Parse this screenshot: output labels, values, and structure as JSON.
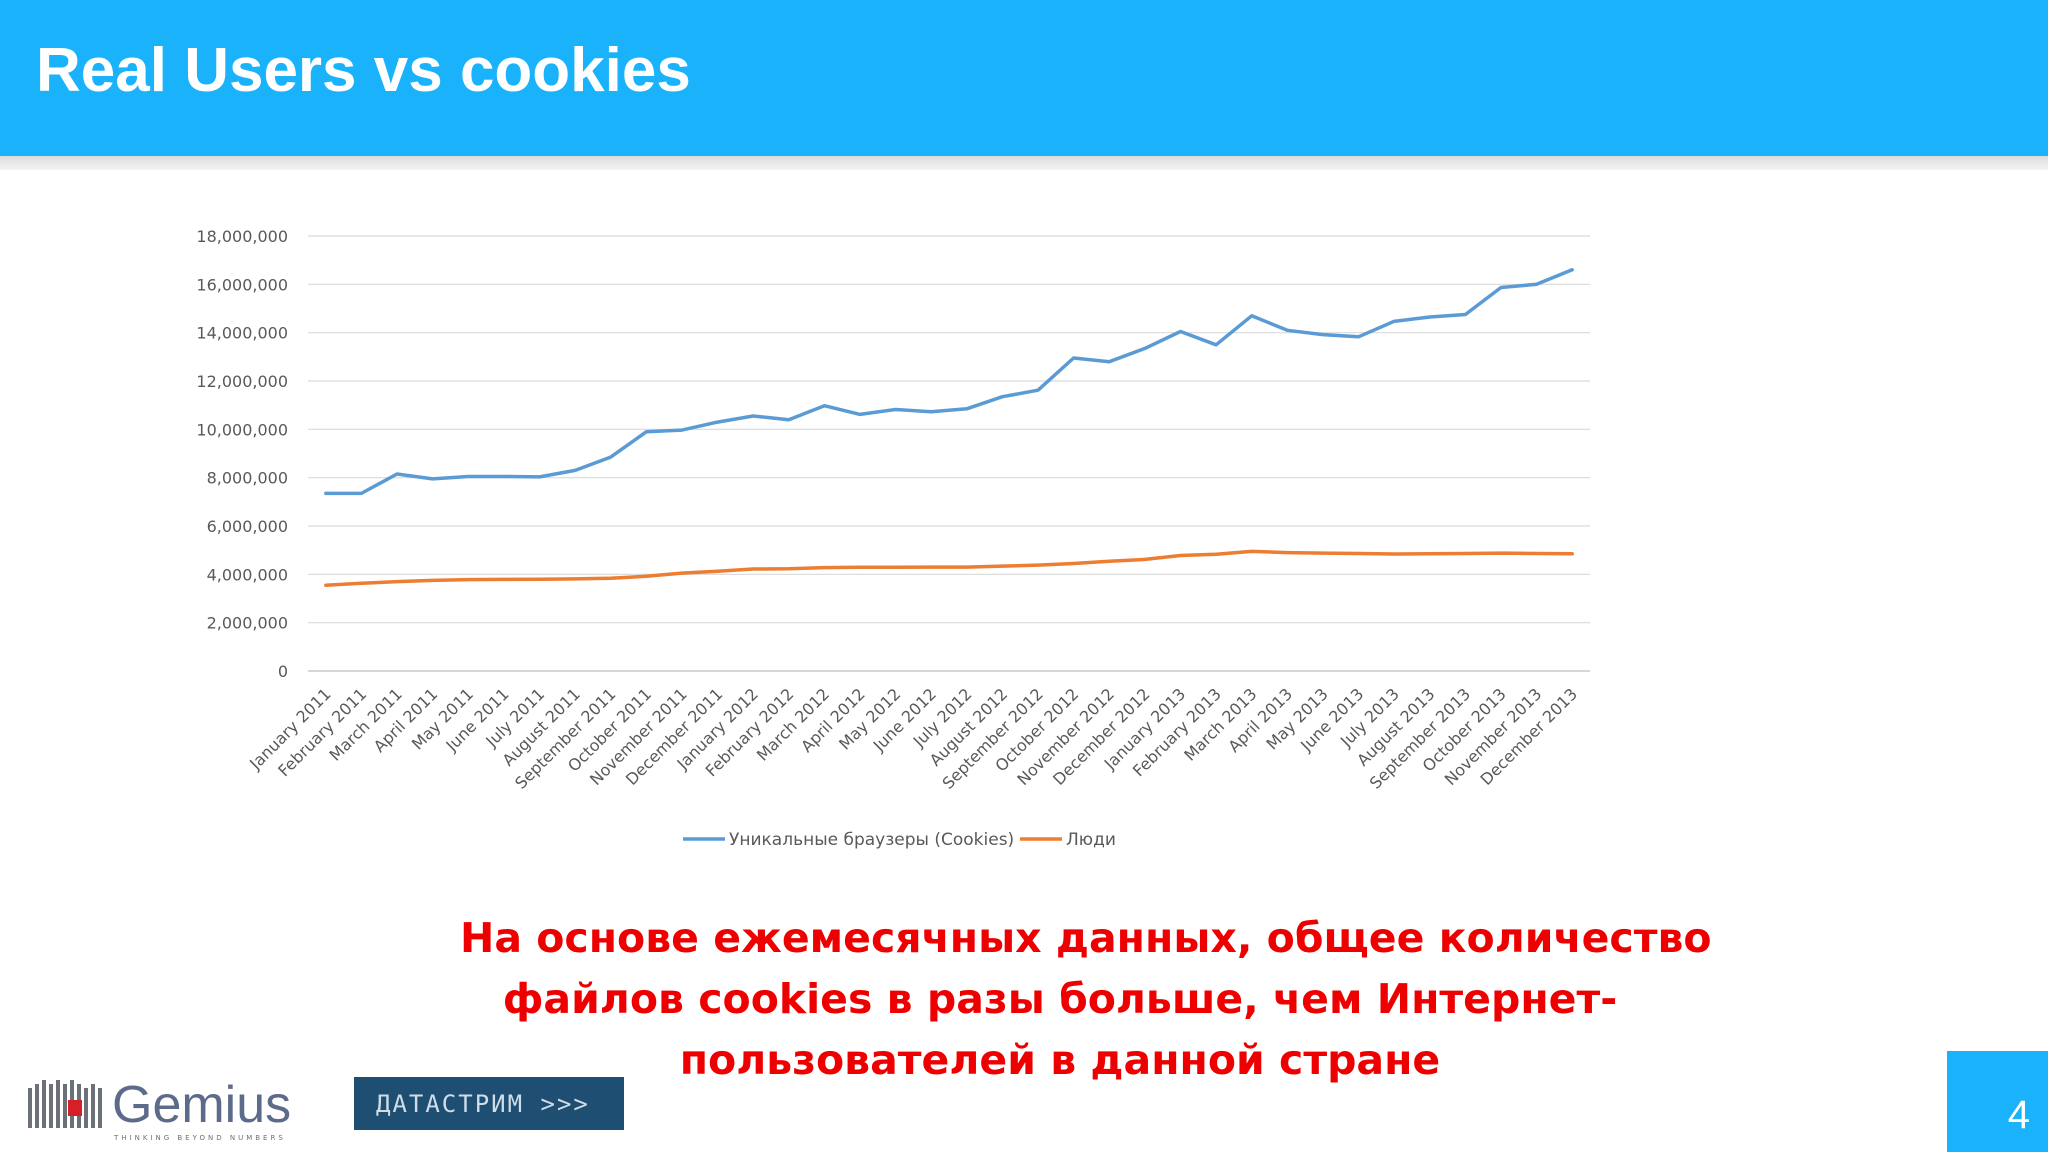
{
  "slide": {
    "title": "Real Users vs cookies",
    "caption_lines": [
      "На основе ежемесячных данных, общее количество",
      "файлов cookies в разы больше, чем Интернет-",
      "пользователей в данной стране"
    ],
    "page_number": "4",
    "logos": {
      "gemius": "Gemius",
      "gemius_tagline": "THINKING BEYOND NUMBERS",
      "datastream": "ДАТАСТРИМ >>>"
    },
    "colors": {
      "header": "#1ab2fa",
      "caption": "#ee0000"
    }
  },
  "chart_data": {
    "type": "line",
    "title": "",
    "xlabel": "",
    "ylabel": "",
    "ylim": [
      0,
      18000000
    ],
    "yticks": [
      0,
      2000000,
      4000000,
      6000000,
      8000000,
      10000000,
      12000000,
      14000000,
      16000000,
      18000000
    ],
    "ytick_labels": [
      "0",
      "2,000,000",
      "4,000,000",
      "6,000,000",
      "8,000,000",
      "10,000,000",
      "12,000,000",
      "14,000,000",
      "16,000,000",
      "18,000,000"
    ],
    "grid": true,
    "legend": "bottom",
    "categories": [
      "January 2011",
      "February 2011",
      "March 2011",
      "April 2011",
      "May 2011",
      "June 2011",
      "July 2011",
      "August 2011",
      "September 2011",
      "October 2011",
      "November 2011",
      "December 2011",
      "January 2012",
      "February 2012",
      "March 2012",
      "April 2012",
      "May 2012",
      "June 2012",
      "July 2012",
      "August 2012",
      "September 2012",
      "October 2012",
      "November 2012",
      "December 2012",
      "January 2013",
      "February 2013",
      "March 2013",
      "April 2013",
      "May 2013",
      "June 2013",
      "July 2013",
      "August 2013",
      "September 2013",
      "October 2013",
      "November 2013",
      "December 2013"
    ],
    "series": [
      {
        "name": "Уникальные браузеры (Cookies)",
        "color": "#5b9bd5",
        "values": [
          7350000,
          7350000,
          8150000,
          7950000,
          8050000,
          8050000,
          8030000,
          8300000,
          8850000,
          9900000,
          9970000,
          10300000,
          10550000,
          10400000,
          10980000,
          10620000,
          10820000,
          10730000,
          10850000,
          11350000,
          11620000,
          12950000,
          12800000,
          13350000,
          14050000,
          13500000,
          14700000,
          14100000,
          13920000,
          13830000,
          14470000,
          14650000,
          14750000,
          15870000,
          16000000,
          16600000
        ]
      },
      {
        "name": "Люди",
        "color": "#ed7d31",
        "values": [
          3550000,
          3630000,
          3700000,
          3750000,
          3780000,
          3790000,
          3800000,
          3810000,
          3840000,
          3920000,
          4050000,
          4130000,
          4220000,
          4230000,
          4280000,
          4290000,
          4290000,
          4300000,
          4300000,
          4340000,
          4380000,
          4450000,
          4540000,
          4620000,
          4780000,
          4830000,
          4950000,
          4900000,
          4880000,
          4860000,
          4840000,
          4850000,
          4860000,
          4880000,
          4860000,
          4850000
        ]
      }
    ]
  }
}
